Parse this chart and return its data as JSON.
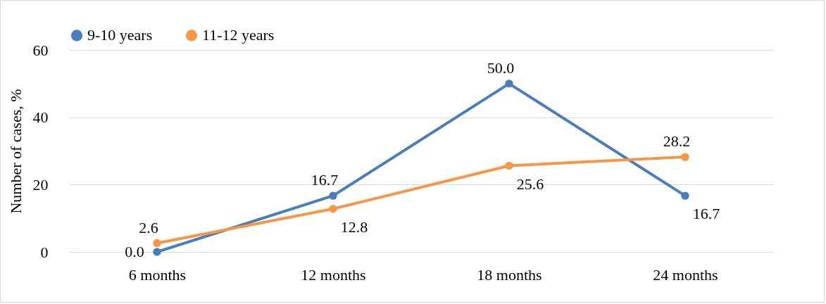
{
  "chart_data": {
    "type": "line",
    "ylabel": "Number of cases, %",
    "categories": [
      "6 months",
      "12 months",
      "18 months",
      "24 months"
    ],
    "series": [
      {
        "name": "9-10 years",
        "color": "#4a7ebb",
        "values": [
          0.0,
          16.7,
          50.0,
          16.7
        ],
        "value_labels": [
          "0.0",
          "16.7",
          "50.0",
          "16.7"
        ]
      },
      {
        "name": "11-12 years",
        "color": "#f79646",
        "values": [
          2.6,
          12.8,
          25.6,
          28.2
        ],
        "value_labels": [
          "2.6",
          "12.8",
          "25.6",
          "28.2"
        ]
      }
    ],
    "ylim": [
      0,
      60
    ],
    "yticks": [
      0,
      20,
      40,
      60
    ],
    "grid": "y",
    "legend": "top left",
    "marker": "circle",
    "line_style": "solid"
  }
}
